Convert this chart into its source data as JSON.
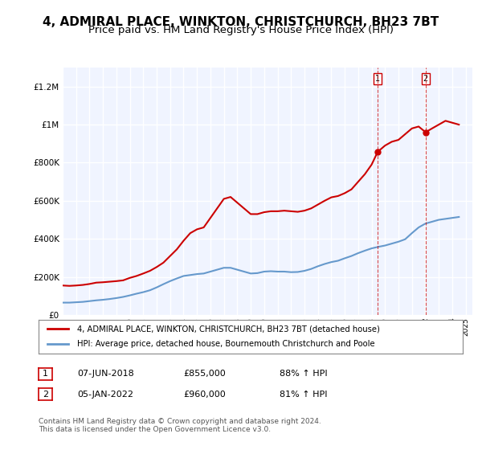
{
  "title": "4, ADMIRAL PLACE, WINKTON, CHRISTCHURCH, BH23 7BT",
  "subtitle": "Price paid vs. HM Land Registry's House Price Index (HPI)",
  "title_fontsize": 11,
  "subtitle_fontsize": 9.5,
  "ylabel_ticks": [
    "£0",
    "£200K",
    "£400K",
    "£600K",
    "£800K",
    "£1M",
    "£1.2M"
  ],
  "ytick_vals": [
    0,
    200000,
    400000,
    600000,
    800000,
    1000000,
    1200000
  ],
  "ylim": [
    0,
    1300000
  ],
  "xlim_start": 1995.0,
  "xlim_end": 2025.5,
  "background_color": "#f0f4ff",
  "plot_bg_color": "#f0f4ff",
  "red_line_color": "#cc0000",
  "blue_line_color": "#6699cc",
  "grid_color": "#ffffff",
  "purchase1_x": 2018.44,
  "purchase1_y": 855000,
  "purchase2_x": 2022.02,
  "purchase2_y": 960000,
  "legend1_text": "4, ADMIRAL PLACE, WINKTON, CHRISTCHURCH, BH23 7BT (detached house)",
  "legend2_text": "HPI: Average price, detached house, Bournemouth Christchurch and Poole",
  "note1_label": "1",
  "note1_date": "07-JUN-2018",
  "note1_price": "£855,000",
  "note1_hpi": "88% ↑ HPI",
  "note2_label": "2",
  "note2_date": "05-JAN-2022",
  "note2_price": "£960,000",
  "note2_hpi": "81% ↑ HPI",
  "footer": "Contains HM Land Registry data © Crown copyright and database right 2024.\nThis data is licensed under the Open Government Licence v3.0.",
  "red_line_x": [
    1995.0,
    1995.5,
    1996.0,
    1996.5,
    1997.0,
    1997.5,
    1998.0,
    1998.5,
    1999.0,
    1999.5,
    2000.0,
    2000.5,
    2001.0,
    2001.5,
    2002.0,
    2002.5,
    2003.0,
    2003.5,
    2004.0,
    2004.5,
    2005.0,
    2005.5,
    2006.0,
    2006.5,
    2007.0,
    2007.5,
    2008.0,
    2008.5,
    2009.0,
    2009.5,
    2010.0,
    2010.5,
    2011.0,
    2011.5,
    2012.0,
    2012.5,
    2013.0,
    2013.5,
    2014.0,
    2014.5,
    2015.0,
    2015.5,
    2016.0,
    2016.5,
    2017.0,
    2017.5,
    2018.0,
    2018.44,
    2018.5,
    2019.0,
    2019.5,
    2020.0,
    2020.5,
    2021.0,
    2021.5,
    2022.02,
    2022.5,
    2023.0,
    2023.5,
    2024.0,
    2024.5
  ],
  "red_line_y": [
    155000,
    153000,
    155000,
    158000,
    163000,
    170000,
    172000,
    175000,
    178000,
    182000,
    195000,
    205000,
    218000,
    232000,
    252000,
    275000,
    310000,
    345000,
    390000,
    430000,
    450000,
    460000,
    510000,
    560000,
    610000,
    620000,
    590000,
    560000,
    530000,
    530000,
    540000,
    545000,
    545000,
    548000,
    545000,
    542000,
    548000,
    560000,
    580000,
    600000,
    618000,
    625000,
    640000,
    660000,
    700000,
    740000,
    790000,
    855000,
    860000,
    890000,
    910000,
    920000,
    950000,
    980000,
    990000,
    960000,
    980000,
    1000000,
    1020000,
    1010000,
    1000000
  ],
  "blue_line_x": [
    1995.0,
    1995.5,
    1996.0,
    1996.5,
    1997.0,
    1997.5,
    1998.0,
    1998.5,
    1999.0,
    1999.5,
    2000.0,
    2000.5,
    2001.0,
    2001.5,
    2002.0,
    2002.5,
    2003.0,
    2003.5,
    2004.0,
    2004.5,
    2005.0,
    2005.5,
    2006.0,
    2006.5,
    2007.0,
    2007.5,
    2008.0,
    2008.5,
    2009.0,
    2009.5,
    2010.0,
    2010.5,
    2011.0,
    2011.5,
    2012.0,
    2012.5,
    2013.0,
    2013.5,
    2014.0,
    2014.5,
    2015.0,
    2015.5,
    2016.0,
    2016.5,
    2017.0,
    2017.5,
    2018.0,
    2018.5,
    2019.0,
    2019.5,
    2020.0,
    2020.5,
    2021.0,
    2021.5,
    2022.0,
    2022.5,
    2023.0,
    2023.5,
    2024.0,
    2024.5
  ],
  "blue_line_y": [
    65000,
    65000,
    67000,
    69000,
    73000,
    77000,
    80000,
    84000,
    89000,
    95000,
    103000,
    112000,
    120000,
    130000,
    145000,
    162000,
    178000,
    192000,
    205000,
    210000,
    215000,
    218000,
    228000,
    238000,
    248000,
    248000,
    238000,
    228000,
    218000,
    220000,
    228000,
    230000,
    228000,
    228000,
    225000,
    226000,
    232000,
    242000,
    256000,
    268000,
    278000,
    285000,
    298000,
    310000,
    325000,
    338000,
    350000,
    358000,
    365000,
    375000,
    385000,
    398000,
    430000,
    460000,
    480000,
    490000,
    500000,
    505000,
    510000,
    515000
  ]
}
